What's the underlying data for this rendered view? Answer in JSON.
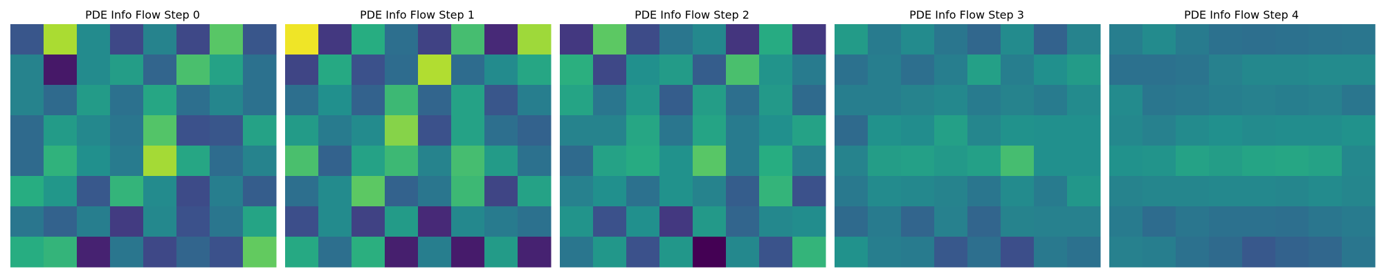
{
  "figure": {
    "titles": [
      "PDE Info Flow Step 0",
      "PDE Info Flow Step 1",
      "PDE Info Flow Step 2",
      "PDE Info Flow Step 3",
      "PDE Info Flow Step 4"
    ]
  },
  "chart_data": [
    {
      "type": "heatmap",
      "title": "PDE Info Flow Step 0",
      "colormap": "viridis",
      "value_range": [
        0,
        1
      ],
      "grid": false,
      "values": [
        [
          0.27,
          0.88,
          0.48,
          0.22,
          0.45,
          0.22,
          0.74,
          0.27
        ],
        [
          0.45,
          0.07,
          0.48,
          0.56,
          0.33,
          0.71,
          0.58,
          0.38
        ],
        [
          0.45,
          0.35,
          0.55,
          0.38,
          0.6,
          0.37,
          0.46,
          0.38
        ],
        [
          0.35,
          0.55,
          0.47,
          0.4,
          0.73,
          0.25,
          0.27,
          0.58
        ],
        [
          0.35,
          0.65,
          0.5,
          0.42,
          0.87,
          0.6,
          0.36,
          0.45
        ],
        [
          0.63,
          0.53,
          0.28,
          0.66,
          0.48,
          0.23,
          0.43,
          0.3
        ],
        [
          0.4,
          0.32,
          0.43,
          0.18,
          0.47,
          0.25,
          0.4,
          0.59
        ],
        [
          0.63,
          0.66,
          0.1,
          0.4,
          0.22,
          0.33,
          0.25,
          0.76
        ]
      ]
    },
    {
      "type": "heatmap",
      "title": "PDE Info Flow Step 1",
      "colormap": "viridis",
      "value_range": [
        0,
        1
      ],
      "grid": false,
      "values": [
        [
          0.98,
          0.17,
          0.63,
          0.37,
          0.2,
          0.7,
          0.12,
          0.86
        ],
        [
          0.21,
          0.61,
          0.25,
          0.36,
          0.89,
          0.36,
          0.48,
          0.6
        ],
        [
          0.37,
          0.5,
          0.32,
          0.68,
          0.33,
          0.58,
          0.27,
          0.43
        ],
        [
          0.55,
          0.42,
          0.48,
          0.82,
          0.25,
          0.58,
          0.37,
          0.32
        ],
        [
          0.71,
          0.32,
          0.58,
          0.68,
          0.45,
          0.7,
          0.55,
          0.38
        ],
        [
          0.37,
          0.48,
          0.75,
          0.32,
          0.4,
          0.68,
          0.21,
          0.58
        ],
        [
          0.24,
          0.48,
          0.2,
          0.55,
          0.12,
          0.47,
          0.42,
          0.38
        ],
        [
          0.61,
          0.37,
          0.64,
          0.09,
          0.43,
          0.08,
          0.55,
          0.1
        ]
      ]
    },
    {
      "type": "heatmap",
      "title": "PDE Info Flow Step 2",
      "colormap": "viridis",
      "value_range": [
        0,
        1
      ],
      "grid": false,
      "values": [
        [
          0.17,
          0.75,
          0.23,
          0.4,
          0.47,
          0.16,
          0.62,
          0.17
        ],
        [
          0.64,
          0.22,
          0.5,
          0.55,
          0.3,
          0.71,
          0.52,
          0.42
        ],
        [
          0.59,
          0.4,
          0.53,
          0.3,
          0.56,
          0.37,
          0.54,
          0.35
        ],
        [
          0.45,
          0.45,
          0.6,
          0.4,
          0.59,
          0.42,
          0.5,
          0.58
        ],
        [
          0.35,
          0.58,
          0.62,
          0.51,
          0.74,
          0.42,
          0.63,
          0.44
        ],
        [
          0.44,
          0.5,
          0.38,
          0.51,
          0.45,
          0.3,
          0.66,
          0.25
        ],
        [
          0.52,
          0.25,
          0.5,
          0.17,
          0.54,
          0.33,
          0.47,
          0.49
        ],
        [
          0.4,
          0.53,
          0.25,
          0.53,
          0.0,
          0.47,
          0.26,
          0.66
        ]
      ]
    },
    {
      "type": "heatmap",
      "title": "PDE Info Flow Step 3",
      "colormap": "viridis",
      "value_range": [
        0,
        1
      ],
      "grid": false,
      "values": [
        [
          0.55,
          0.42,
          0.48,
          0.4,
          0.34,
          0.48,
          0.32,
          0.45
        ],
        [
          0.38,
          0.43,
          0.37,
          0.43,
          0.57,
          0.43,
          0.5,
          0.55
        ],
        [
          0.43,
          0.43,
          0.45,
          0.47,
          0.42,
          0.45,
          0.42,
          0.48
        ],
        [
          0.35,
          0.51,
          0.49,
          0.57,
          0.46,
          0.51,
          0.5,
          0.5
        ],
        [
          0.45,
          0.56,
          0.57,
          0.54,
          0.57,
          0.7,
          0.5,
          0.5
        ],
        [
          0.41,
          0.48,
          0.47,
          0.45,
          0.4,
          0.48,
          0.42,
          0.53
        ],
        [
          0.35,
          0.42,
          0.33,
          0.44,
          0.33,
          0.45,
          0.44,
          0.44
        ],
        [
          0.51,
          0.43,
          0.42,
          0.28,
          0.37,
          0.24,
          0.41,
          0.38
        ]
      ]
    },
    {
      "type": "heatmap",
      "title": "PDE Info Flow Step 4",
      "colormap": "viridis",
      "value_range": [
        0,
        1
      ],
      "grid": false,
      "values": [
        [
          0.43,
          0.48,
          0.42,
          0.38,
          0.37,
          0.38,
          0.39,
          0.4
        ],
        [
          0.38,
          0.38,
          0.39,
          0.44,
          0.47,
          0.47,
          0.48,
          0.48
        ],
        [
          0.48,
          0.4,
          0.41,
          0.43,
          0.44,
          0.43,
          0.44,
          0.4
        ],
        [
          0.47,
          0.44,
          0.48,
          0.5,
          0.48,
          0.49,
          0.49,
          0.51
        ],
        [
          0.51,
          0.52,
          0.58,
          0.56,
          0.59,
          0.6,
          0.58,
          0.47
        ],
        [
          0.45,
          0.46,
          0.46,
          0.47,
          0.47,
          0.46,
          0.48,
          0.46
        ],
        [
          0.42,
          0.36,
          0.4,
          0.38,
          0.38,
          0.37,
          0.4,
          0.42
        ],
        [
          0.44,
          0.43,
          0.38,
          0.35,
          0.28,
          0.32,
          0.34,
          0.4
        ]
      ]
    }
  ]
}
